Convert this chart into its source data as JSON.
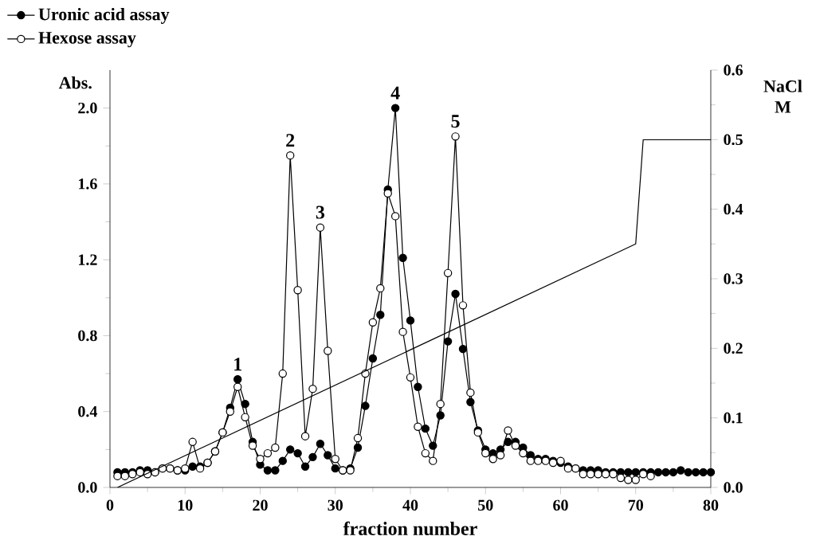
{
  "chart_data": {
    "type": "line",
    "xlabel": "fraction number",
    "ylabel": "Abs.",
    "y2label": "NaCl M",
    "xlim": [
      0,
      80
    ],
    "xticks": [
      0,
      10,
      20,
      30,
      40,
      50,
      60,
      70,
      80
    ],
    "ylim": [
      0,
      2.2
    ],
    "yticks": [
      {
        "value": 0,
        "label": "0.0"
      },
      {
        "value": 0.4,
        "label": "0.4"
      },
      {
        "value": 0.8,
        "label": "0.8"
      },
      {
        "value": 1.2,
        "label": "1.2"
      },
      {
        "value": 1.6,
        "label": "1.6"
      },
      {
        "value": 2.0,
        "label": "2.0"
      }
    ],
    "y2lim": [
      0,
      0.6
    ],
    "y2ticks": [
      {
        "value": 0,
        "label": "0.0"
      },
      {
        "value": 0.1,
        "label": "0.1"
      },
      {
        "value": 0.2,
        "label": "0.2"
      },
      {
        "value": 0.3,
        "label": "0.3"
      },
      {
        "value": 0.4,
        "label": "0.4"
      },
      {
        "value": 0.5,
        "label": "0.5"
      },
      {
        "value": 0.6,
        "label": "0.6"
      }
    ],
    "grid": false,
    "legend": "top left",
    "marker": "circle",
    "line_style": "solid",
    "x": [
      1,
      2,
      3,
      4,
      5,
      6,
      7,
      8,
      9,
      10,
      11,
      12,
      13,
      14,
      15,
      16,
      17,
      18,
      19,
      20,
      21,
      22,
      23,
      24,
      25,
      26,
      27,
      28,
      29,
      30,
      31,
      32,
      33,
      34,
      35,
      36,
      37,
      38,
      39,
      40,
      41,
      42,
      43,
      44,
      45,
      46,
      47,
      48,
      49,
      50,
      51,
      52,
      53,
      54,
      55,
      56,
      57,
      58,
      59,
      60,
      61,
      62,
      63,
      64,
      65,
      66,
      67,
      68,
      69,
      70,
      71,
      72,
      73,
      74,
      75,
      76,
      77,
      78,
      79,
      80
    ],
    "series": [
      {
        "name": "Uronic acid assay",
        "color": "#000000",
        "values": [
          0.08,
          0.08,
          0.08,
          0.09,
          0.09,
          0.08,
          0.1,
          0.1,
          0.09,
          0.09,
          0.11,
          0.11,
          0.13,
          0.19,
          0.29,
          0.42,
          0.57,
          0.44,
          0.24,
          0.12,
          0.09,
          0.09,
          0.14,
          0.2,
          0.18,
          0.11,
          0.16,
          0.23,
          0.17,
          0.1,
          0.09,
          0.1,
          0.21,
          0.43,
          0.68,
          0.91,
          1.57,
          2.0,
          1.21,
          0.88,
          0.53,
          0.31,
          0.22,
          0.38,
          0.77,
          1.02,
          0.73,
          0.45,
          0.3,
          0.2,
          0.18,
          0.2,
          0.24,
          0.24,
          0.21,
          0.17,
          0.15,
          0.15,
          0.14,
          0.13,
          0.11,
          0.1,
          0.09,
          0.09,
          0.09,
          0.08,
          0.08,
          0.08,
          0.08,
          0.08,
          0.08,
          0.08,
          0.08,
          0.08,
          0.08,
          0.09,
          0.08,
          0.08,
          0.08,
          0.08
        ]
      },
      {
        "name": "Hexose assay",
        "color": "#000000",
        "x": [
          1,
          2,
          3,
          4,
          5,
          6,
          7,
          8,
          9,
          10,
          11,
          12,
          13,
          14,
          15,
          16,
          17,
          18,
          19,
          20,
          21,
          22,
          23,
          24,
          25,
          26,
          27,
          28,
          29,
          30,
          31,
          32,
          33,
          34,
          35,
          36,
          37,
          38,
          39,
          40,
          41,
          42,
          43,
          44,
          45,
          46,
          47,
          48,
          49,
          50,
          51,
          52,
          53,
          54,
          55,
          56,
          57,
          58,
          59,
          60,
          61,
          62,
          63,
          64,
          65,
          66,
          67,
          68,
          69,
          70,
          71,
          72
        ],
        "values": [
          0.06,
          0.06,
          0.07,
          0.08,
          0.07,
          0.08,
          0.1,
          0.1,
          0.09,
          0.1,
          0.24,
          0.1,
          0.13,
          0.19,
          0.29,
          0.4,
          0.53,
          0.37,
          0.22,
          0.15,
          0.18,
          0.21,
          0.6,
          1.75,
          1.04,
          0.27,
          0.52,
          1.37,
          0.72,
          0.15,
          0.09,
          0.09,
          0.26,
          0.6,
          0.87,
          1.05,
          1.55,
          1.43,
          0.82,
          0.58,
          0.32,
          0.18,
          0.14,
          0.44,
          1.13,
          1.85,
          0.96,
          0.5,
          0.29,
          0.18,
          0.15,
          0.17,
          0.3,
          0.22,
          0.18,
          0.14,
          0.14,
          0.14,
          0.13,
          0.14,
          0.1,
          0.1,
          0.07,
          0.07,
          0.07,
          0.07,
          0.07,
          0.05,
          0.04,
          0.04,
          0.07,
          0.06
        ]
      },
      {
        "color": "#000000",
        "axis": "y2",
        "marker": "none",
        "x": [
          1,
          70,
          71,
          80
        ],
        "values": [
          0,
          0.35,
          0.5,
          0.5
        ]
      }
    ],
    "annotations": [
      {
        "text": "1",
        "x": 17,
        "y": 0.57
      },
      {
        "text": "2",
        "x": 24,
        "y": 1.75
      },
      {
        "text": "3",
        "x": 28,
        "y": 1.37
      },
      {
        "text": "4",
        "x": 38,
        "y": 2.0
      },
      {
        "text": "5",
        "x": 46,
        "y": 1.85
      }
    ]
  }
}
